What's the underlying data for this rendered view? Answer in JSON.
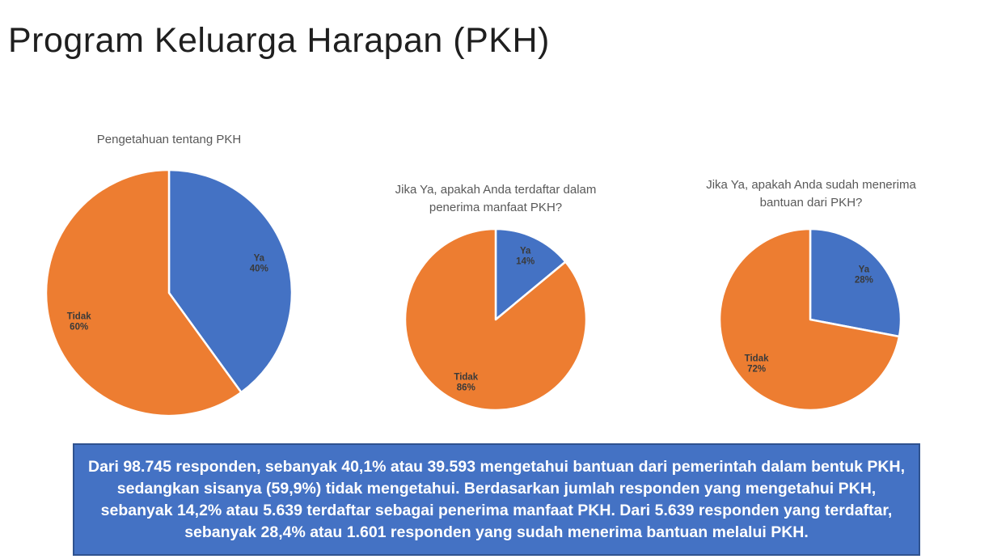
{
  "header": {
    "title": "Program Keluarga Harapan (PKH)"
  },
  "colors": {
    "ya_blue": "#4472C4",
    "tidak_orange": "#ED7D31",
    "chart_title_gray": "#595959",
    "slice_label_color": "#3A3A3A",
    "slice_divider": "#FFFFFF",
    "summary_fill": "#4472C4",
    "summary_border": "#2F528F",
    "summary_text_color": "#FFFFFF"
  },
  "chart_data": [
    {
      "type": "pie",
      "title": "Pengetahuan tentang PKH",
      "title_lines": [
        "Pengetahuan tentang PKH"
      ],
      "categories": [
        "Ya",
        "Tidak"
      ],
      "values": [
        40,
        60
      ],
      "colors": [
        "#4472C4",
        "#ED7D31"
      ],
      "start_angle_deg": 0,
      "direction": "clockwise",
      "labels": [
        "Ya 40%",
        "Tidak 60%"
      ],
      "label_position": "inside"
    },
    {
      "type": "pie",
      "title": "Jika Ya, apakah Anda terdaftar dalam penerima manfaat PKH?",
      "title_lines": [
        "Jika Ya, apakah Anda terdaftar dalam",
        "penerima manfaat PKH?"
      ],
      "categories": [
        "Ya",
        "Tidak"
      ],
      "values": [
        14,
        86
      ],
      "colors": [
        "#4472C4",
        "#ED7D31"
      ],
      "start_angle_deg": 0,
      "direction": "clockwise",
      "labels": [
        "Ya 14%",
        "Tidak 86%"
      ],
      "label_position": "inside"
    },
    {
      "type": "pie",
      "title": "Jika Ya, apakah Anda sudah menerima bantuan dari PKH?",
      "title_lines": [
        "Jika Ya, apakah Anda sudah menerima",
        "bantuan dari PKH?"
      ],
      "categories": [
        "Ya",
        "Tidak"
      ],
      "values": [
        28,
        72
      ],
      "colors": [
        "#4472C4",
        "#ED7D31"
      ],
      "start_angle_deg": 0,
      "direction": "clockwise",
      "labels": [
        "Ya 28%",
        "Tidak 72%"
      ],
      "label_position": "inside"
    }
  ],
  "summary_box": {
    "text": "Dari 98.745 responden, sebanyak 40,1% atau 39.593 mengetahui bantuan dari pemerintah dalam bentuk PKH, sedangkan sisanya (59,9%) tidak mengetahui. Berdasarkan jumlah responden yang mengetahui PKH, sebanyak 14,2% atau 5.639 terdaftar sebagai penerima manfaat PKH. Dari 5.639 responden yang terdaftar, sebanyak 28,4% atau 1.601 responden yang sudah menerima bantuan melalui PKH."
  }
}
